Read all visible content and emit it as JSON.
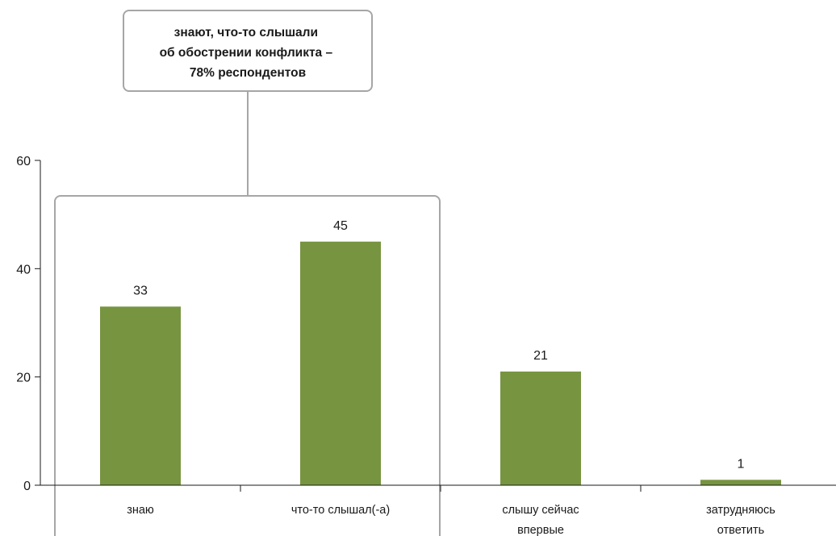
{
  "chart_data": {
    "type": "bar",
    "categories": [
      [
        "знаю"
      ],
      [
        "что-то слышал(-а)"
      ],
      [
        "слышу сейчас",
        "впервые"
      ],
      [
        "затрудняюсь",
        "ответить"
      ]
    ],
    "values": [
      33,
      45,
      21,
      1
    ],
    "data_labels": [
      "33",
      "45",
      "21",
      "1"
    ],
    "ylim": [
      0,
      60
    ],
    "yticks": [
      0,
      20,
      40,
      60
    ],
    "ytick_labels": [
      "0",
      "20",
      "40",
      "60"
    ],
    "bar_color": "#779440",
    "grid": false,
    "annotation": {
      "lines": [
        "знают, что-то слышали",
        "об обострении конфликта –",
        "78% респондентов"
      ],
      "groups": [
        0,
        1
      ]
    }
  }
}
